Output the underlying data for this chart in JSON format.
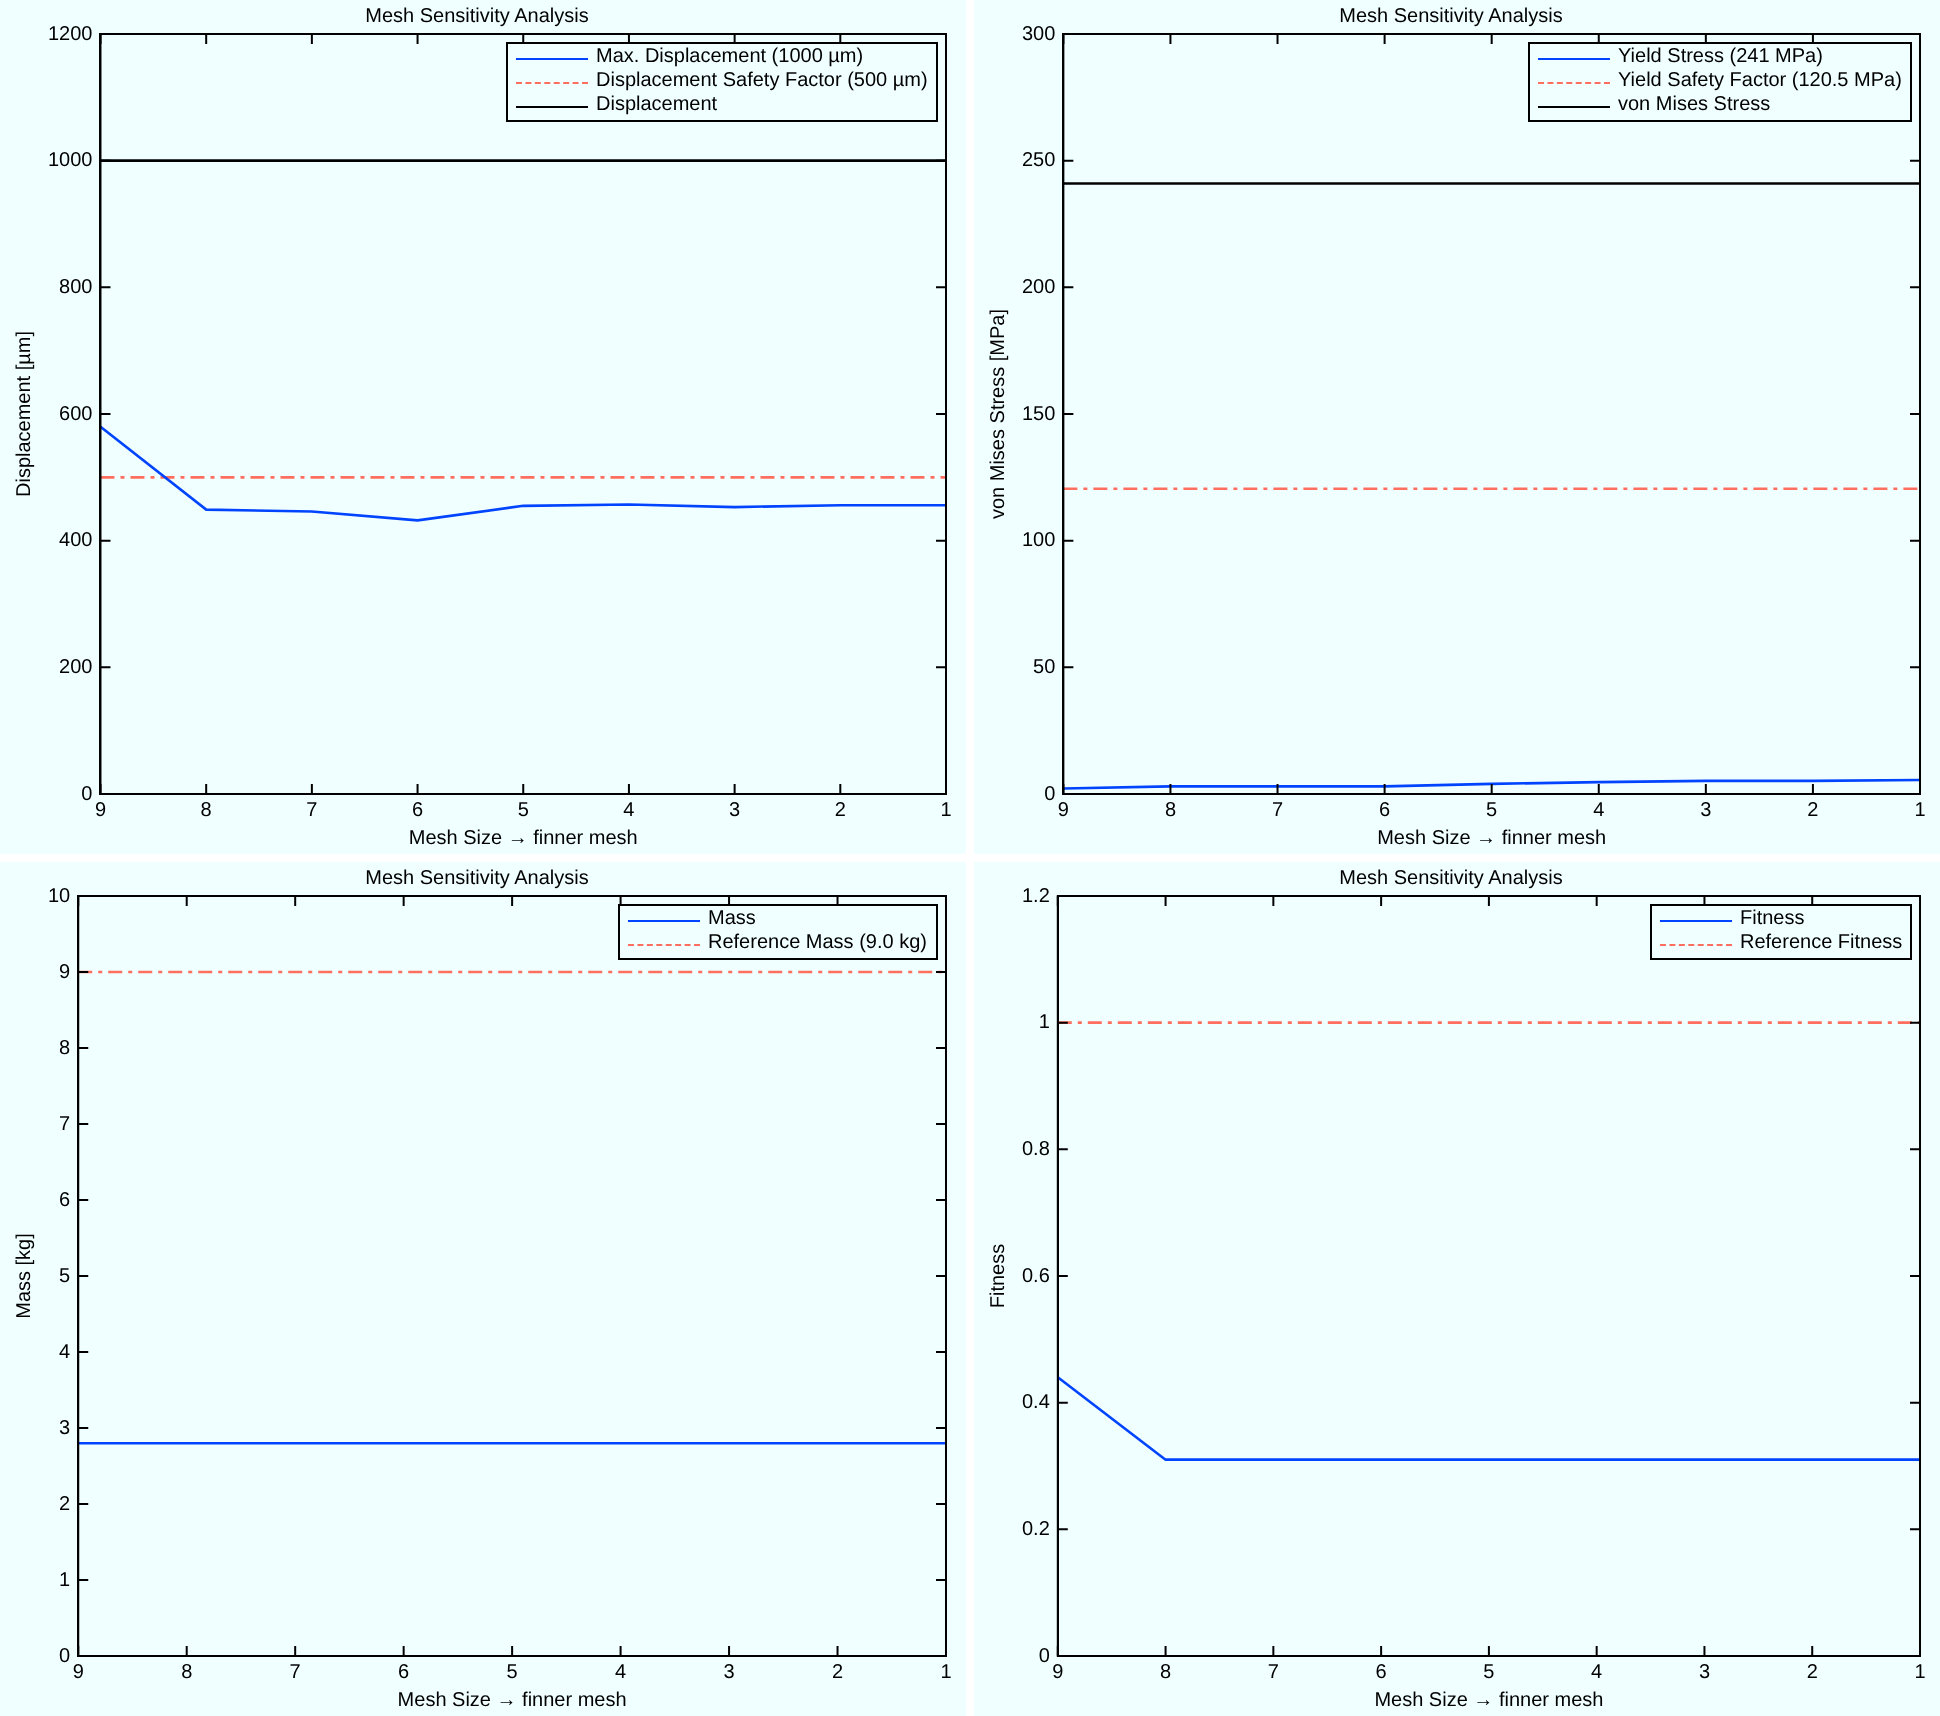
{
  "chart_data": [
    {
      "type": "line",
      "title": "Mesh Sensitivity Analysis",
      "xlabel": "Mesh Size → finner mesh",
      "ylabel": "Displacement [µm]",
      "xlim": [
        9,
        1
      ],
      "xticks": [
        9,
        8,
        7,
        6,
        5,
        4,
        3,
        2,
        1
      ],
      "ylim": [
        0,
        1200
      ],
      "yticks": [
        0,
        200,
        400,
        600,
        800,
        1000,
        1200
      ],
      "grid": false,
      "legend": "top right",
      "marker": "none",
      "series": [
        {
          "name": "Max. Displacement (1000 µm)",
          "color": "#0044ff",
          "line_style": "solid",
          "x": [
            9,
            8,
            7,
            6,
            5,
            4,
            3,
            2,
            1
          ],
          "values": [
            580,
            449,
            446,
            432,
            455,
            457,
            453,
            456,
            456
          ]
        },
        {
          "name": "Displacement Safety Factor (500 µm)",
          "color": "#ff6f5f",
          "line_style": "dashed",
          "x": [
            9,
            1
          ],
          "values": [
            500,
            500
          ]
        },
        {
          "name": "Displacement",
          "color": "#000000",
          "line_style": "solid",
          "x": [
            9,
            1
          ],
          "values": [
            1000,
            1000
          ]
        }
      ]
    },
    {
      "type": "line",
      "title": "Mesh Sensitivity Analysis",
      "xlabel": "Mesh Size → finner mesh",
      "ylabel": "von Mises Stress [MPa]",
      "xlim": [
        9,
        1
      ],
      "xticks": [
        9,
        8,
        7,
        6,
        5,
        4,
        3,
        2,
        1
      ],
      "ylim": [
        0,
        300
      ],
      "yticks": [
        0,
        50,
        100,
        150,
        200,
        250,
        300
      ],
      "grid": false,
      "legend": "top right",
      "marker": "none",
      "series": [
        {
          "name": "Yield Stress (241 MPa)",
          "color": "#0044ff",
          "line_style": "solid",
          "x": [
            9,
            8,
            7,
            6,
            5,
            4,
            3,
            2,
            1
          ],
          "values": [
            2.2,
            3,
            3,
            3,
            4,
            4.7,
            5.2,
            5.2,
            5.5
          ]
        },
        {
          "name": "Yield Safety Factor (120.5 MPa)",
          "color": "#ff6f5f",
          "line_style": "dashed",
          "x": [
            9,
            1
          ],
          "values": [
            120.5,
            120.5
          ]
        },
        {
          "name": "von Mises Stress",
          "color": "#000000",
          "line_style": "solid",
          "x": [
            9,
            1
          ],
          "values": [
            241,
            241
          ]
        }
      ]
    },
    {
      "type": "line",
      "title": "Mesh Sensitivity Analysis",
      "xlabel": "Mesh Size → finner mesh",
      "ylabel": "Mass [kg]",
      "xlim": [
        9,
        1
      ],
      "xticks": [
        9,
        8,
        7,
        6,
        5,
        4,
        3,
        2,
        1
      ],
      "ylim": [
        0,
        10
      ],
      "yticks": [
        0,
        1,
        2,
        3,
        4,
        5,
        6,
        7,
        8,
        9,
        10
      ],
      "grid": false,
      "legend": "top right",
      "marker": "none",
      "series": [
        {
          "name": "Mass",
          "color": "#0044ff",
          "line_style": "solid",
          "x": [
            9,
            1
          ],
          "values": [
            2.8,
            2.8
          ]
        },
        {
          "name": "Reference Mass (9.0 kg)",
          "color": "#ff6f5f",
          "line_style": "dashed",
          "x": [
            9,
            1
          ],
          "values": [
            9,
            9
          ]
        }
      ]
    },
    {
      "type": "line",
      "title": "Mesh Sensitivity Analysis",
      "xlabel": "Mesh Size → finner mesh",
      "ylabel": "Fitness",
      "xlim": [
        9,
        1
      ],
      "xticks": [
        9,
        8,
        7,
        6,
        5,
        4,
        3,
        2,
        1
      ],
      "ylim": [
        0,
        1.2
      ],
      "yticks": [
        0,
        0.2,
        0.4,
        0.6,
        0.8,
        1,
        1.2
      ],
      "grid": false,
      "legend": "top right",
      "marker": "none",
      "series": [
        {
          "name": "Fitness",
          "color": "#0044ff",
          "line_style": "solid",
          "x": [
            9,
            8,
            7,
            6,
            5,
            4,
            3,
            2,
            1
          ],
          "values": [
            0.44,
            0.31,
            0.31,
            0.31,
            0.31,
            0.31,
            0.31,
            0.31,
            0.31
          ]
        },
        {
          "name": "Reference Fitness",
          "color": "#ff6f5f",
          "line_style": "dashed",
          "x": [
            9,
            1
          ],
          "values": [
            1,
            1
          ]
        }
      ]
    }
  ]
}
